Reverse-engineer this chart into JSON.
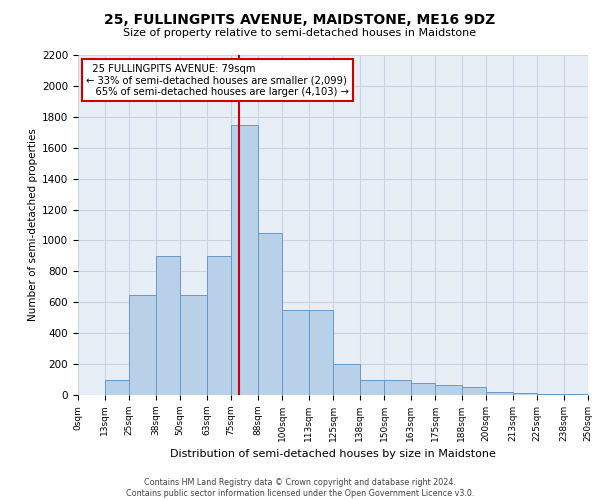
{
  "title": "25, FULLINGPITS AVENUE, MAIDSTONE, ME16 9DZ",
  "subtitle": "Size of property relative to semi-detached houses in Maidstone",
  "xlabel": "Distribution of semi-detached houses by size in Maidstone",
  "ylabel": "Number of semi-detached properties",
  "footer_line1": "Contains HM Land Registry data © Crown copyright and database right 2024.",
  "footer_line2": "Contains public sector information licensed under the Open Government Licence v3.0.",
  "property_size": 79,
  "property_label": "25 FULLINGPITS AVENUE: 79sqm",
  "pct_smaller": 33,
  "count_smaller": 2099,
  "pct_larger": 65,
  "count_larger": 4103,
  "bin_edges": [
    0,
    13,
    25,
    38,
    50,
    63,
    75,
    88,
    100,
    113,
    125,
    138,
    150,
    163,
    175,
    188,
    200,
    213,
    225,
    238,
    250
  ],
  "bar_heights": [
    0,
    100,
    650,
    900,
    650,
    900,
    1750,
    1050,
    550,
    550,
    200,
    100,
    100,
    75,
    65,
    50,
    20,
    10,
    5,
    5
  ],
  "bar_color": "#b8d0e8",
  "bar_edge_color": "#6699cc",
  "grid_color": "#c8d4e4",
  "bg_color": "#e8eef6",
  "vline_color": "#cc0000",
  "vline_x": 79,
  "annotation_box_color": "#cc0000",
  "ylim": [
    0,
    2200
  ],
  "yticks": [
    0,
    200,
    400,
    600,
    800,
    1000,
    1200,
    1400,
    1600,
    1800,
    2000,
    2200
  ],
  "tick_labels": [
    "0sqm",
    "13sqm",
    "25sqm",
    "38sqm",
    "50sqm",
    "63sqm",
    "75sqm",
    "88sqm",
    "100sqm",
    "113sqm",
    "125sqm",
    "138sqm",
    "150sqm",
    "163sqm",
    "175sqm",
    "188sqm",
    "200sqm",
    "213sqm",
    "225sqm",
    "238sqm",
    "250sqm"
  ]
}
